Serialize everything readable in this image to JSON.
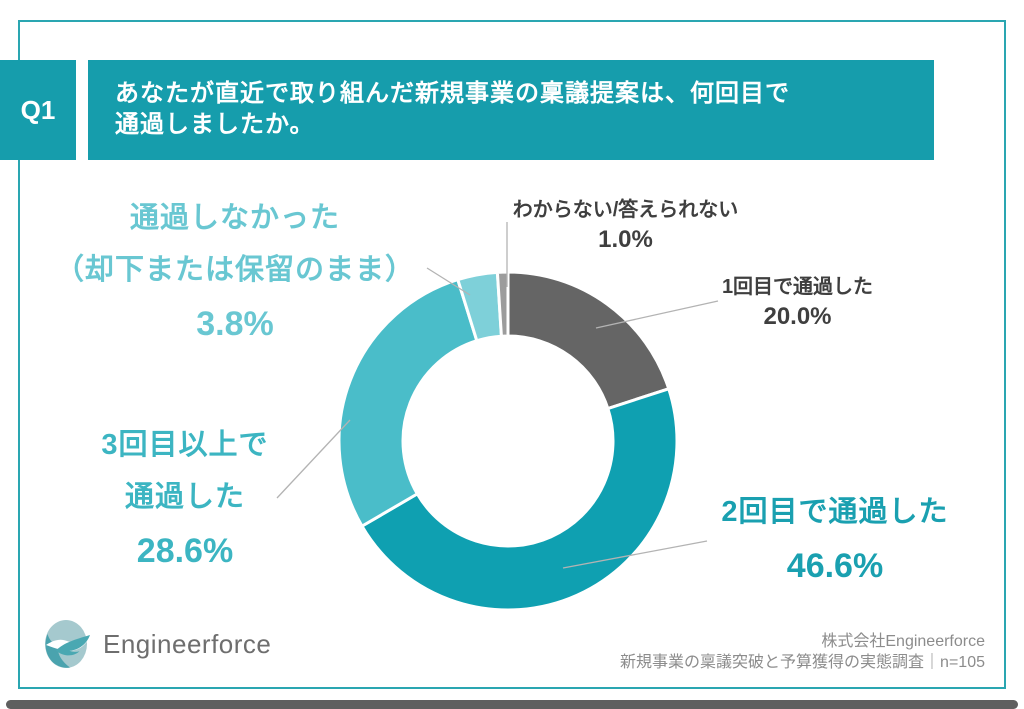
{
  "question_badge": {
    "label": "Q1"
  },
  "header": {
    "title_line1": "あなたが直近で取り組んだ新規事業の稟議提案は、何回目で",
    "title_line2": "通過しましたか。",
    "bg_color": "#169dac"
  },
  "chart_data": {
    "type": "pie",
    "variant": "donut",
    "title": "あなたが直近で取り組んだ新規事業の稟議提案は、何回目で通過しましたか。",
    "unit": "%",
    "start_angle": "12-oclock",
    "direction": "clockwise",
    "inner_radius_ratio": 0.62,
    "sample_size": "n=105",
    "segments": [
      {
        "label": "1回目で通過した",
        "value": 20.0,
        "color": "#656565"
      },
      {
        "label": "2回目で通過した",
        "value": 46.6,
        "color": "#0fa0b1"
      },
      {
        "label": "3回目以上で通過した",
        "value": 28.6,
        "color": "#4abdc9"
      },
      {
        "label": "通過しなかった（却下または保留のまま）",
        "value": 3.8,
        "color": "#7ed0d9"
      },
      {
        "label": "わからない/答えられない",
        "value": 1.0,
        "color": "#9c9c9c"
      }
    ]
  },
  "labels": {
    "unknown": {
      "line1": "わからない/答えられない",
      "value": "1.0%"
    },
    "first": {
      "line1": "1回目で通過した",
      "value": "20.0%"
    },
    "second": {
      "line1": "2回目で通過した",
      "value": "46.6%"
    },
    "third": {
      "line1": "3回目以上で",
      "line2": "通過した",
      "value": "28.6%"
    },
    "failed": {
      "line1": "通過しなかった",
      "line2": "（却下または保留のまま）",
      "value": "3.8%"
    }
  },
  "footer": {
    "logo_text": "Engineerforce",
    "company": "株式会社Engineerforce",
    "survey": "新規事業の稟議突破と予算獲得の実態調査｜n=105"
  },
  "colors": {
    "accent_teal": "#169dac",
    "frame_border": "#2aa6b1",
    "leader_line": "#b3b3b3"
  }
}
